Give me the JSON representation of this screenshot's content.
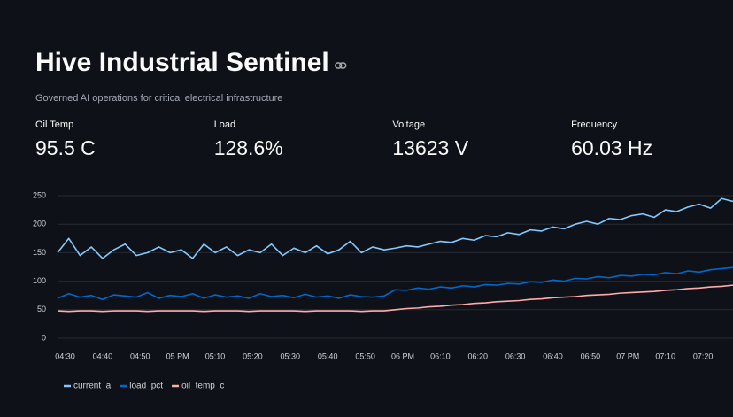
{
  "header": {
    "title": "Hive Industrial Sentinel",
    "subtitle": "Governed AI operations for critical electrical infrastructure"
  },
  "metrics": [
    {
      "label": "Oil Temp",
      "value": "95.5 C"
    },
    {
      "label": "Load",
      "value": "128.6%"
    },
    {
      "label": "Voltage",
      "value": "13623 V"
    },
    {
      "label": "Frequency",
      "value": "60.03 Hz"
    }
  ],
  "chart_data": {
    "type": "line",
    "x": [
      "16:28",
      "16:31",
      "16:34",
      "16:37",
      "16:40",
      "16:43",
      "16:46",
      "16:49",
      "16:52",
      "16:55",
      "16:58",
      "17:01",
      "17:04",
      "17:07",
      "17:10",
      "17:13",
      "17:16",
      "17:19",
      "17:22",
      "17:25",
      "17:28",
      "17:31",
      "17:34",
      "17:37",
      "17:40",
      "17:43",
      "17:46",
      "17:49",
      "17:52",
      "17:55",
      "17:58",
      "18:01",
      "18:04",
      "18:07",
      "18:10",
      "18:13",
      "18:16",
      "18:19",
      "18:22",
      "18:25",
      "18:28",
      "18:31",
      "18:34",
      "18:37",
      "18:40",
      "18:43",
      "18:46",
      "18:49",
      "18:52",
      "18:55",
      "18:58",
      "19:01",
      "19:04",
      "19:07",
      "19:10",
      "19:13",
      "19:16",
      "19:19",
      "19:22",
      "19:25",
      "19:28"
    ],
    "xlim": [
      "16:28",
      "19:28"
    ],
    "xticks": [
      {
        "value": "16:30",
        "label": "04:30"
      },
      {
        "value": "16:40",
        "label": "04:40"
      },
      {
        "value": "16:50",
        "label": "04:50"
      },
      {
        "value": "17:00",
        "label": "05 PM"
      },
      {
        "value": "17:10",
        "label": "05:10"
      },
      {
        "value": "17:20",
        "label": "05:20"
      },
      {
        "value": "17:30",
        "label": "05:30"
      },
      {
        "value": "17:40",
        "label": "05:40"
      },
      {
        "value": "17:50",
        "label": "05:50"
      },
      {
        "value": "18:00",
        "label": "06 PM"
      },
      {
        "value": "18:10",
        "label": "06:10"
      },
      {
        "value": "18:20",
        "label": "06:20"
      },
      {
        "value": "18:30",
        "label": "06:30"
      },
      {
        "value": "18:40",
        "label": "06:40"
      },
      {
        "value": "18:50",
        "label": "06:50"
      },
      {
        "value": "19:00",
        "label": "07 PM"
      },
      {
        "value": "19:10",
        "label": "07:10"
      },
      {
        "value": "19:20",
        "label": "07:20"
      }
    ],
    "ylim": [
      0,
      250
    ],
    "yticks": [
      0,
      50,
      100,
      150,
      200,
      250
    ],
    "grid": true,
    "series": [
      {
        "name": "current_a",
        "color": "#83c9ff",
        "values": [
          150,
          175,
          145,
          160,
          140,
          155,
          165,
          145,
          150,
          160,
          150,
          155,
          140,
          165,
          150,
          160,
          145,
          155,
          150,
          165,
          145,
          158,
          150,
          162,
          148,
          155,
          170,
          150,
          160,
          155,
          158,
          162,
          160,
          165,
          170,
          168,
          175,
          172,
          180,
          178,
          185,
          182,
          190,
          188,
          195,
          192,
          200,
          205,
          200,
          210,
          208,
          215,
          218,
          212,
          225,
          222,
          230,
          235,
          228,
          245,
          240
        ]
      },
      {
        "name": "load_pct",
        "color": "#0068c9",
        "values": [
          70,
          78,
          72,
          75,
          68,
          76,
          74,
          72,
          80,
          70,
          75,
          73,
          78,
          70,
          76,
          72,
          74,
          70,
          78,
          73,
          75,
          71,
          77,
          72,
          74,
          70,
          76,
          73,
          72,
          74,
          85,
          84,
          88,
          86,
          90,
          88,
          92,
          90,
          94,
          93,
          96,
          95,
          99,
          98,
          102,
          100,
          105,
          104,
          108,
          106,
          110,
          109,
          112,
          111,
          115,
          113,
          118,
          116,
          120,
          122,
          124
        ]
      },
      {
        "name": "oil_temp_c",
        "color": "#ffabab",
        "values": [
          48,
          47,
          48,
          48,
          47,
          48,
          48,
          48,
          47,
          48,
          48,
          48,
          48,
          47,
          48,
          48,
          48,
          47,
          48,
          48,
          48,
          48,
          47,
          48,
          48,
          48,
          48,
          47,
          48,
          48,
          50,
          52,
          53,
          55,
          56,
          58,
          59,
          61,
          62,
          64,
          65,
          66,
          68,
          69,
          71,
          72,
          73,
          75,
          76,
          77,
          79,
          80,
          81,
          82,
          84,
          85,
          87,
          88,
          90,
          91,
          93
        ]
      }
    ]
  }
}
